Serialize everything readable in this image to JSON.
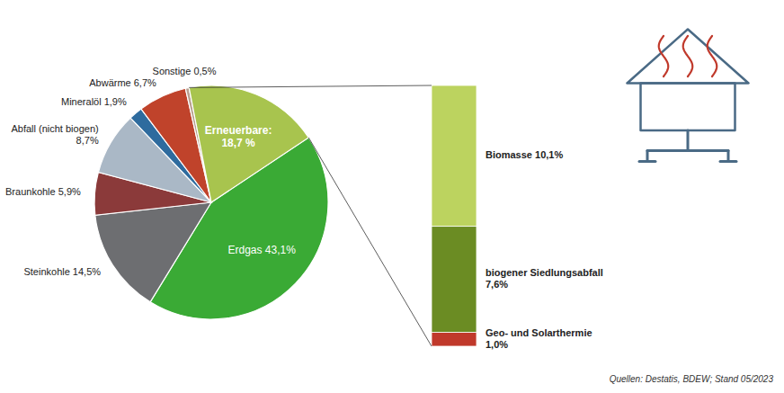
{
  "chart_data": [
    {
      "type": "pie",
      "categories": [
        "Erdgas 43,1%",
        "Steinkohle 14,5%",
        "Braunkohle 5,9%",
        "Abfall (nicht biogen)\n8,7%",
        "Mineralöl 1,9%",
        "Abwärme 6,7%",
        "Sonstige 0,5%",
        "Erneuerbare:\n18,7 %"
      ],
      "values": [
        43.1,
        14.5,
        5.9,
        8.7,
        1.9,
        6.7,
        0.5,
        18.7
      ],
      "colors": [
        "#3aaa35",
        "#6d6e71",
        "#8b3a3a",
        "#aab8c6",
        "#2e6b9e",
        "#c0432b",
        "#b8a090",
        "#a8c44e"
      ],
      "annotations": [
        "Quellen: Destatis, BDEW; Stand 05/2023"
      ]
    },
    {
      "type": "bar",
      "stacked": true,
      "categories": [
        null
      ],
      "series": [
        {
          "name": "Geo- und Solarthermie\n1,0%",
          "color": "#c0392b",
          "values": [
            1.0
          ]
        },
        {
          "name": "biogener Siedlungsabfall\n7,6%",
          "color": "#6b8c23",
          "values": [
            7.6
          ]
        },
        {
          "name": "Biomasse 10,1%",
          "color": "#bcd35f",
          "values": [
            10.1
          ]
        }
      ],
      "ylim": [
        0,
        18.7
      ],
      "tick_labels": false
    }
  ]
}
